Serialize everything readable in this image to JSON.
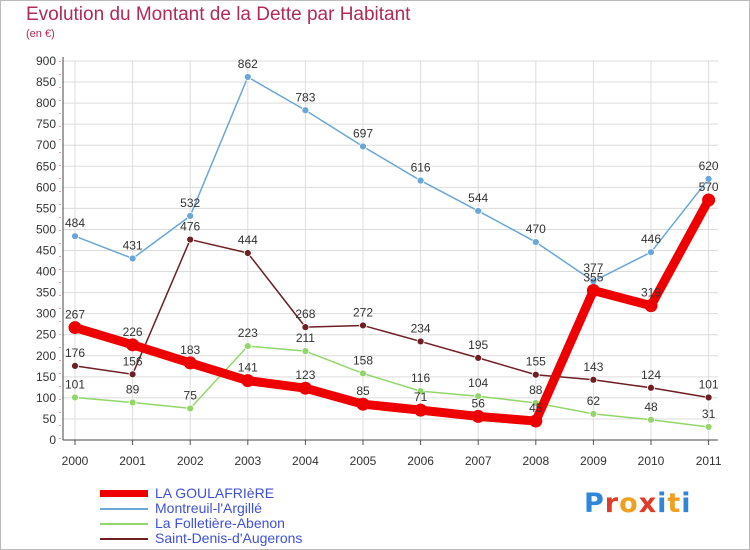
{
  "header": {
    "title": "Evolution du Montant de la Dette par Habitant",
    "subtitle": "(en €)"
  },
  "logo": {
    "text": "Proxiti",
    "letter_colors": [
      "#2f86d8",
      "#e03a28",
      "#f0a020",
      "#e03a28",
      "#2f86d8",
      "#f0a020",
      "#2f86d8"
    ]
  },
  "chart_data": {
    "type": "line",
    "title": "Evolution du Montant de la Dette par Habitant",
    "subtitle": "(en €)",
    "xlabel": "",
    "ylabel": "",
    "categories": [
      "2000",
      "2001",
      "2002",
      "2003",
      "2004",
      "2005",
      "2006",
      "2007",
      "2008",
      "2009",
      "2010",
      "2011"
    ],
    "y_ticks": [
      0,
      50,
      100,
      150,
      200,
      250,
      300,
      350,
      400,
      450,
      500,
      550,
      600,
      650,
      700,
      750,
      800,
      850,
      900
    ],
    "ylim": [
      0,
      900
    ],
    "grid": true,
    "legend_position": "bottom-left",
    "series": [
      {
        "name": "LA GOULAFRIèRE",
        "color": "#ee0000",
        "style": "thick",
        "values": [
          267,
          226,
          183,
          141,
          123,
          85,
          71,
          56,
          45,
          355,
          319,
          570
        ]
      },
      {
        "name": "Montreuil-l'Argillé",
        "color": "#6aa6d8",
        "style": "normal",
        "values": [
          484,
          431,
          532,
          862,
          783,
          697,
          616,
          544,
          470,
          377,
          446,
          620
        ]
      },
      {
        "name": "La Folletière-Abenon",
        "color": "#92d66a",
        "style": "normal",
        "values": [
          101,
          89,
          75,
          223,
          211,
          158,
          116,
          104,
          88,
          62,
          48,
          31
        ]
      },
      {
        "name": "Saint-Denis-d'Augerons",
        "color": "#6e1f24",
        "style": "normal",
        "values": [
          176,
          156,
          476,
          444,
          268,
          272,
          234,
          195,
          155,
          143,
          124,
          101
        ]
      }
    ]
  }
}
